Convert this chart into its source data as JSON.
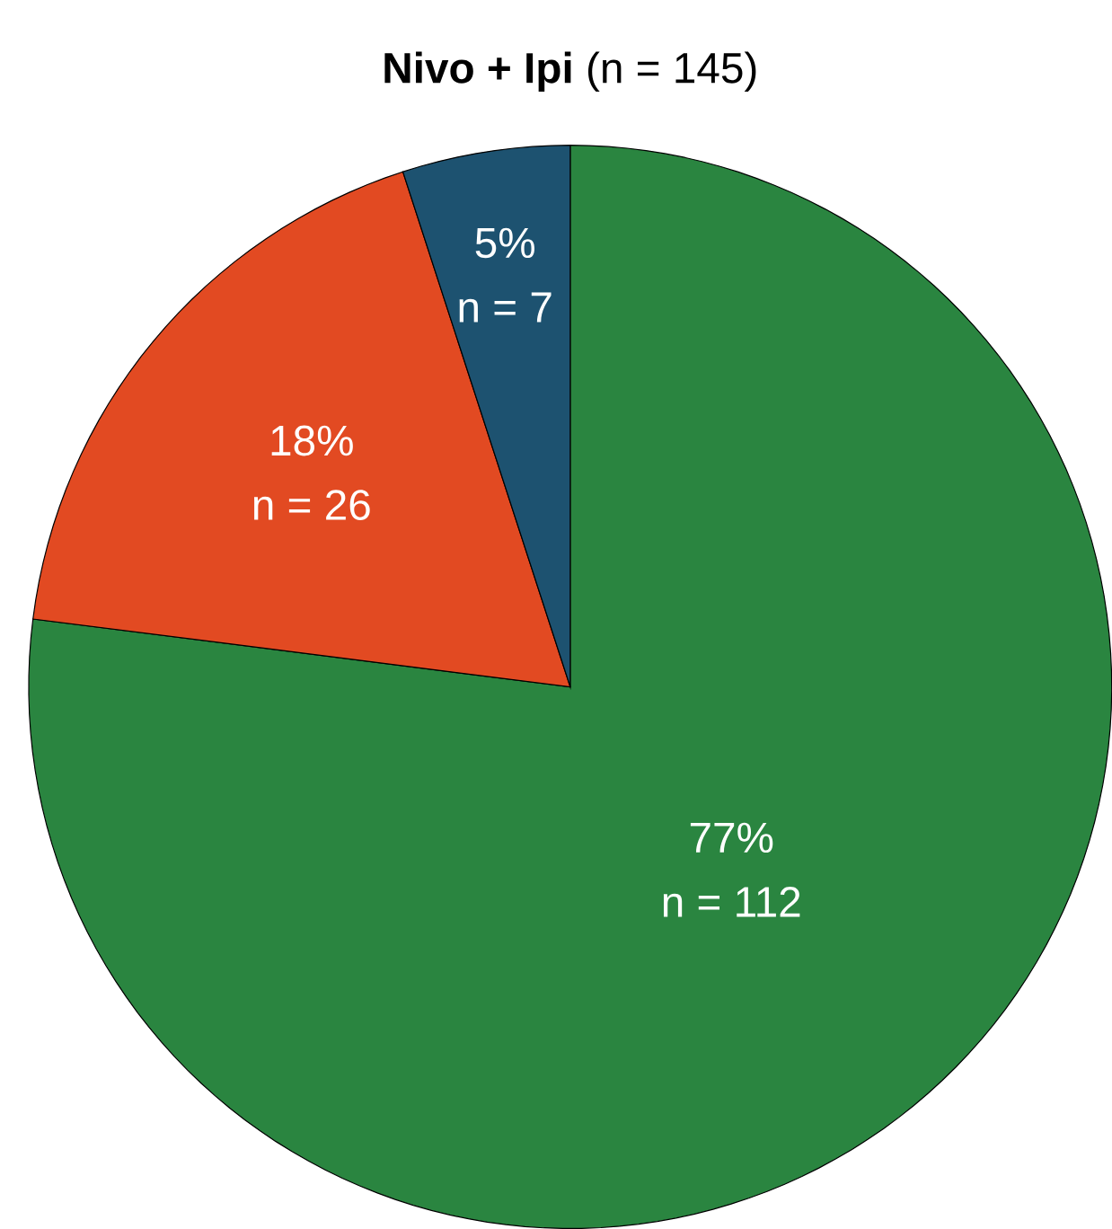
{
  "chart_data": {
    "type": "pie",
    "title": "**Nivo + Ipi** (n = 145)",
    "categories": [
      "n = 112",
      "n = 26",
      "n = 7"
    ],
    "values": [
      77,
      18,
      5
    ],
    "value_labels": [
      "77%",
      "18%",
      "5%"
    ],
    "colors": [
      "#2a8540",
      "#e24a22",
      "#1d5270"
    ]
  }
}
